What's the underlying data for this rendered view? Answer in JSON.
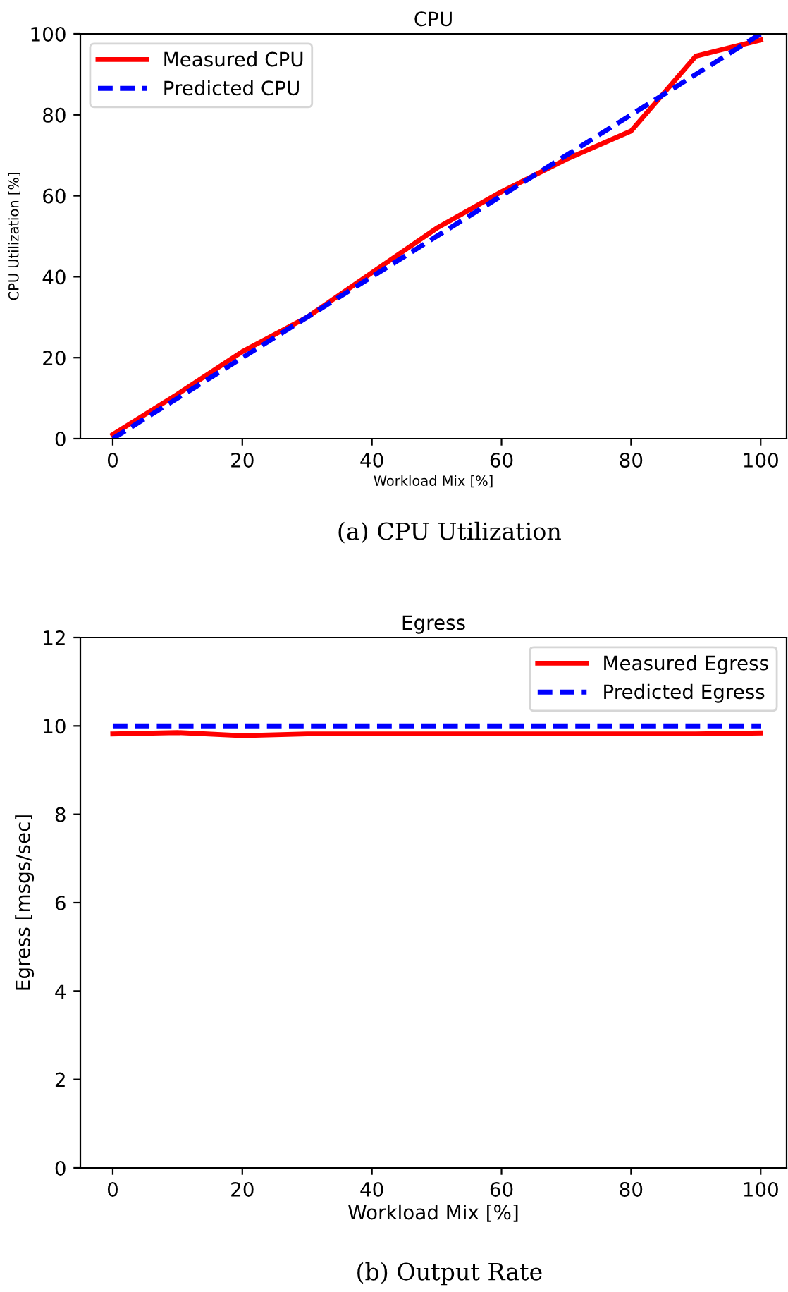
{
  "chart_data": [
    {
      "type": "line",
      "title": "CPU",
      "xlabel": "Workload Mix [%]",
      "ylabel": "CPU Utilization [%]",
      "x": [
        0,
        10,
        20,
        30,
        40,
        50,
        60,
        70,
        80,
        90,
        100
      ],
      "series": [
        {
          "name": "Measured CPU",
          "color": "#ff0000",
          "line_style": "solid",
          "values": [
            1,
            11,
            21.5,
            30,
            41,
            52,
            61,
            69,
            76,
            94.5,
            98.5
          ]
        },
        {
          "name": "Predicted CPU",
          "color": "#0000ff",
          "line_style": "dashed",
          "values": [
            0,
            10,
            20,
            30,
            40,
            50,
            60,
            70,
            80,
            90,
            100
          ]
        }
      ],
      "xlim": [
        -5,
        104
      ],
      "xticks": [
        0,
        20,
        40,
        60,
        80,
        100
      ],
      "ylim": [
        0,
        100
      ],
      "yticks": [
        0,
        20,
        40,
        60,
        80,
        100
      ],
      "grid": false,
      "legend": "top left",
      "annotations": [
        "(a) CPU Utilization"
      ]
    },
    {
      "type": "line",
      "title": "Egress",
      "xlabel": "Workload Mix [%]",
      "ylabel": "Egress [msgs/sec]",
      "x": [
        0,
        10,
        20,
        30,
        40,
        50,
        60,
        70,
        80,
        90,
        100
      ],
      "series": [
        {
          "name": "Measured Egress",
          "color": "#ff0000",
          "line_style": "solid",
          "values": [
            9.82,
            9.85,
            9.78,
            9.82,
            9.82,
            9.82,
            9.82,
            9.82,
            9.82,
            9.82,
            9.84
          ]
        },
        {
          "name": "Predicted Egress",
          "color": "#0000ff",
          "line_style": "dashed",
          "values": [
            10,
            10,
            10,
            10,
            10,
            10,
            10,
            10,
            10,
            10,
            10
          ]
        }
      ],
      "xlim": [
        -5,
        104
      ],
      "xticks": [
        0,
        20,
        40,
        60,
        80,
        100
      ],
      "ylim": [
        0,
        12
      ],
      "yticks": [
        0,
        2,
        4,
        6,
        8,
        10,
        12
      ],
      "grid": false,
      "legend": "top right",
      "annotations": [
        "(b) Output Rate"
      ]
    }
  ]
}
